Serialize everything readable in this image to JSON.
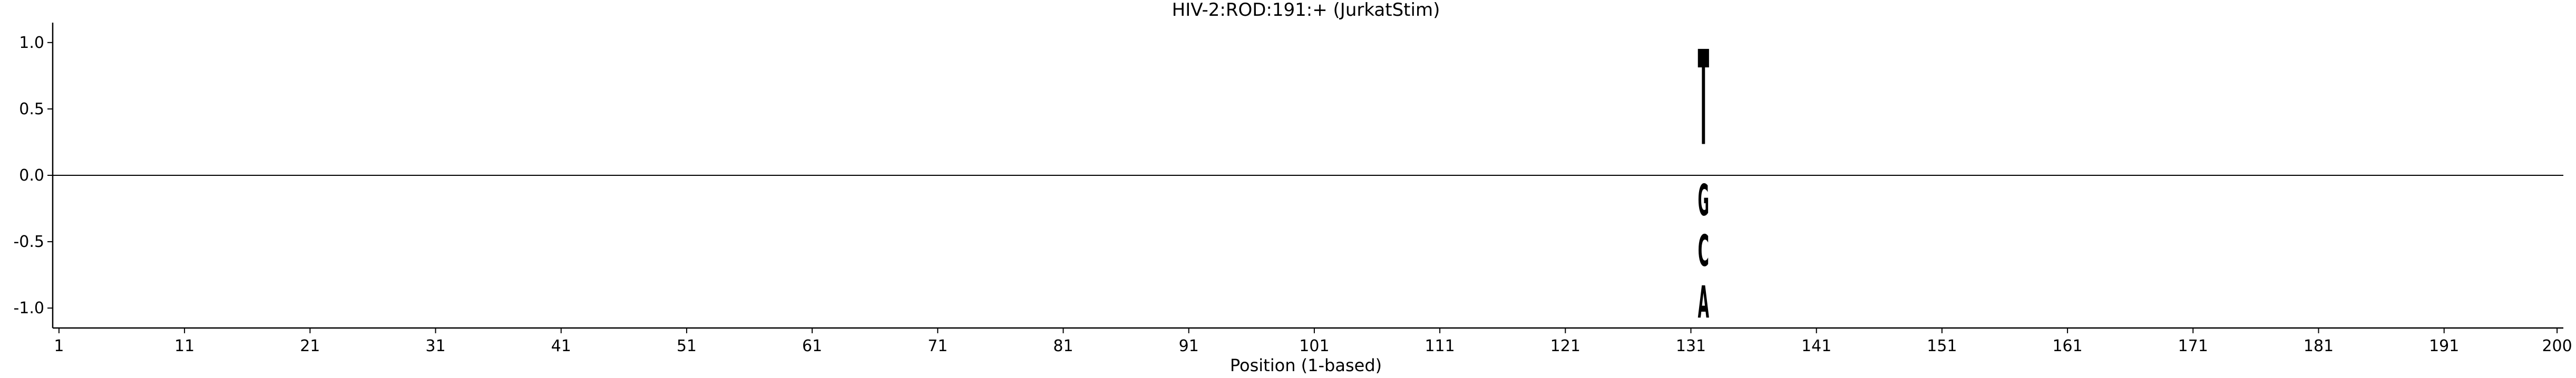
{
  "chart_data": {
    "type": "sequence-logo",
    "title": "HIV-2:ROD:191:+  (JurkatStim)",
    "xlabel": "Position (1-based)",
    "ylabel": "",
    "xlim": [
      1,
      200
    ],
    "ylim": [
      -1.15,
      1.15
    ],
    "xticks": [
      "1",
      "11",
      "21",
      "31",
      "41",
      "51",
      "61",
      "71",
      "81",
      "91",
      "101",
      "111",
      "121",
      "131",
      "141",
      "151",
      "161",
      "171",
      "181",
      "191",
      "200"
    ],
    "yticks": [
      "1.0",
      "0.5",
      "0.0",
      "-0.5",
      "-1.0"
    ],
    "grid": false,
    "colors": {
      "A": "#008000",
      "C": "#0000ff",
      "G": "#ffa500",
      "T": "#ff0000"
    },
    "stacks": [
      {
        "position": 132,
        "letters": [
          {
            "base": "T",
            "bottom": 0.0,
            "top": 1.15
          },
          {
            "base": "G",
            "bottom": -0.38,
            "top": 0.0
          },
          {
            "base": "C",
            "bottom": -0.76,
            "top": -0.38
          },
          {
            "base": "A",
            "bottom": -1.15,
            "top": -0.76
          }
        ]
      }
    ]
  }
}
